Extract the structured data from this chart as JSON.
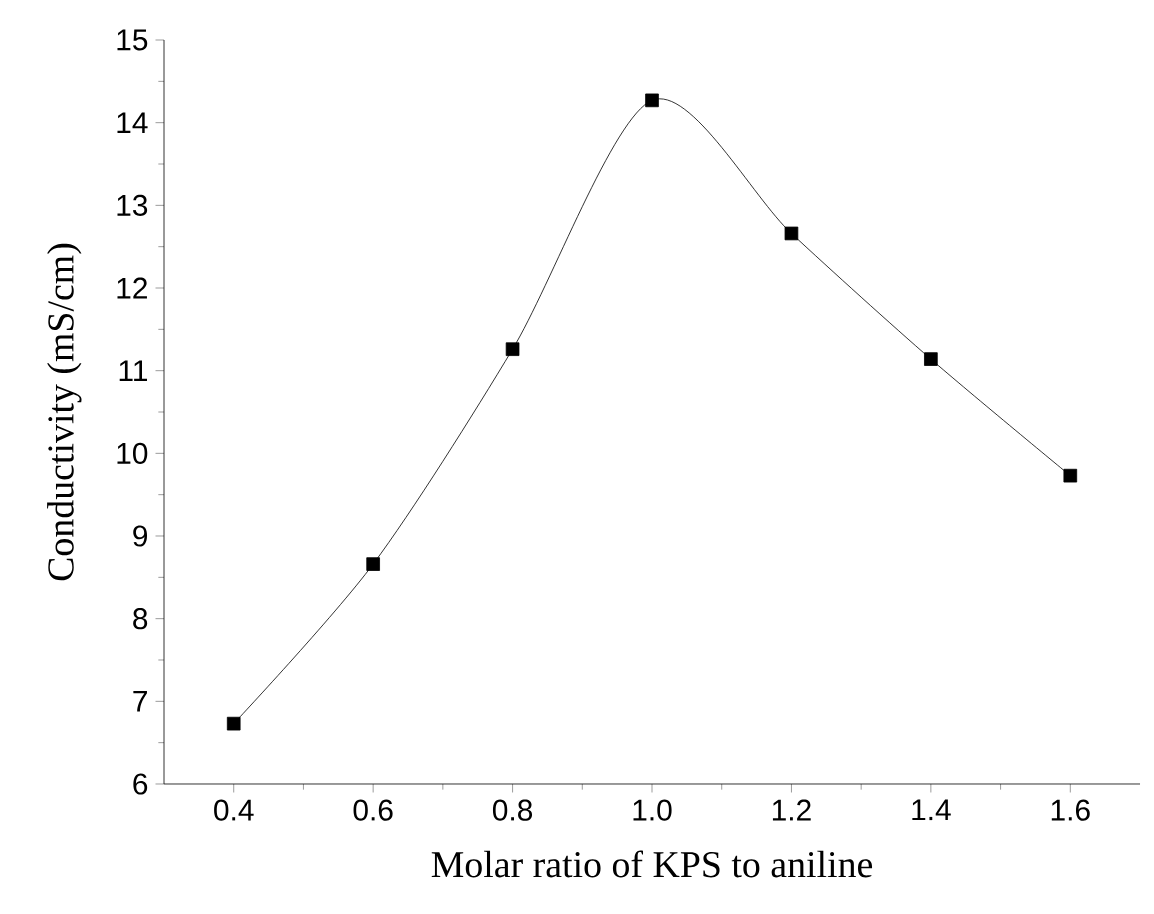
{
  "chart_data": {
    "type": "line",
    "xlabel": "Molar ratio of KPS to aniline",
    "ylabel": "Conductivity (mS/cm)",
    "x": [
      0.4,
      0.6,
      0.8,
      1.0,
      1.2,
      1.4,
      1.6
    ],
    "series": [
      {
        "color": "#000000",
        "values": [
          6.73,
          8.66,
          11.26,
          14.27,
          12.66,
          11.14,
          9.73
        ]
      }
    ],
    "xlim": [
      0.3,
      1.7
    ],
    "ylim": [
      6,
      15
    ],
    "xticks": [
      0.4,
      0.6,
      0.8,
      {
        "value": 1.0,
        "label": "1.0"
      },
      1.2,
      1.4,
      1.6
    ],
    "yticks": [
      6,
      7,
      8,
      9,
      10,
      11,
      12,
      13,
      14,
      15
    ],
    "marker": "square",
    "line_style": "solid",
    "grid": false
  }
}
